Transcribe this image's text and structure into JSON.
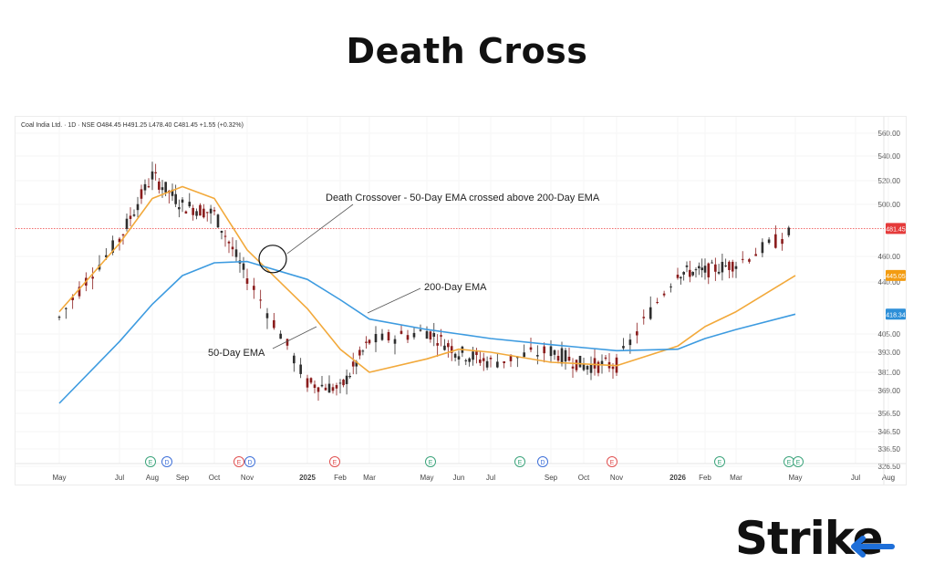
{
  "page": {
    "title": "Death Cross"
  },
  "brand": {
    "name": "Strike",
    "accent": "#1e6fd9"
  },
  "colors": {
    "ema50": "#f2a93b",
    "ema200": "#3d9be0",
    "up": "#2e2e2e",
    "down": "#8a1c1c",
    "price_line": "#f05a5a",
    "ema50_badge": "#f39c12",
    "ema200_badge": "#2d8fd8",
    "price_badge": "#e53b3b"
  },
  "chart_data": {
    "type": "line",
    "legend": "Coal India Ltd. · 1D · NSE  O484.45  H491.25  L478.40  C481.45  +1.55 (+0.32%)",
    "x_ticks": [
      "May",
      "Jul",
      "Aug",
      "Sep",
      "Oct",
      "Nov",
      "2025",
      "Feb",
      "Mar",
      "May",
      "Jun",
      "Jul",
      "Sep",
      "Oct",
      "Nov",
      "2026",
      "Feb",
      "Mar",
      "May",
      "Jul",
      "Aug"
    ],
    "y_ticks": [
      "560.00",
      "540.00",
      "520.00",
      "500.00",
      "460.00",
      "440.00",
      "405.00",
      "393.00",
      "381.00",
      "369.00",
      "356.50",
      "346.50",
      "336.50",
      "326.50"
    ],
    "last_price": 481.45,
    "badges": [
      {
        "label": "481.45",
        "value": 481.45,
        "series": "price"
      },
      {
        "label": "445.05",
        "value": 445.05,
        "series": "ema50"
      },
      {
        "label": "418.34",
        "value": 418.34,
        "series": "ema200"
      }
    ],
    "series": [
      {
        "name": "50-Day EMA",
        "points": [
          [
            "May",
            420
          ],
          [
            "Jul",
            470
          ],
          [
            "Aug",
            505
          ],
          [
            "Sep",
            515
          ],
          [
            "Oct",
            505
          ],
          [
            "Nov",
            465
          ],
          [
            "2025",
            422
          ],
          [
            "Feb",
            395
          ],
          [
            "Mar",
            381
          ],
          [
            "May",
            389
          ],
          [
            "Jun",
            395
          ],
          [
            "Jul",
            393
          ],
          [
            "Sep",
            387
          ],
          [
            "Oct",
            386
          ],
          [
            "Nov",
            385
          ],
          [
            "2026",
            397
          ],
          [
            "Feb",
            410
          ],
          [
            "Mar",
            420
          ],
          [
            "May",
            445.05
          ]
        ]
      },
      {
        "name": "200-Day EMA",
        "points": [
          [
            "May",
            362
          ],
          [
            "Jul",
            400
          ],
          [
            "Aug",
            425
          ],
          [
            "Sep",
            445
          ],
          [
            "Oct",
            455
          ],
          [
            "Nov",
            456
          ],
          [
            "2025",
            442
          ],
          [
            "Feb",
            428
          ],
          [
            "Mar",
            415
          ],
          [
            "May",
            408
          ],
          [
            "Jun",
            405
          ],
          [
            "Jul",
            402
          ],
          [
            "Sep",
            398
          ],
          [
            "Oct",
            396
          ],
          [
            "Nov",
            394
          ],
          [
            "2026",
            395
          ],
          [
            "Feb",
            402
          ],
          [
            "Mar",
            408
          ],
          [
            "May",
            418.34
          ]
        ]
      }
    ],
    "candles_summary": [
      [
        "May",
        412,
        420
      ],
      [
        "Jul",
        470,
        476
      ],
      [
        "Aug",
        518,
        530
      ],
      [
        "Sep",
        505,
        494
      ],
      [
        "Oct",
        500,
        486
      ],
      [
        "Nov",
        450,
        437
      ],
      [
        "2025",
        378,
        370
      ],
      [
        "Feb",
        368,
        372
      ],
      [
        "Mar",
        398,
        402
      ],
      [
        "May",
        405,
        409
      ],
      [
        "Jun",
        395,
        391
      ],
      [
        "Jul",
        389,
        385
      ],
      [
        "Sep",
        392,
        396
      ],
      [
        "Oct",
        386,
        384
      ],
      [
        "Nov",
        384,
        387
      ],
      [
        "2026",
        445,
        450
      ],
      [
        "Feb",
        445,
        452
      ],
      [
        "Mar",
        451,
        458
      ],
      [
        "May",
        478.4,
        481.45
      ]
    ],
    "annotations": [
      {
        "text": "Death Crossover - 50-Day EMA crossed above 200-Day EMA"
      },
      {
        "text": "200-Day EMA"
      },
      {
        "text": "50-Day EMA"
      }
    ],
    "event_markers": [
      "E",
      "D",
      "E",
      "D",
      "E",
      "E",
      "E",
      "D",
      "E",
      "E",
      "E",
      "E"
    ]
  }
}
